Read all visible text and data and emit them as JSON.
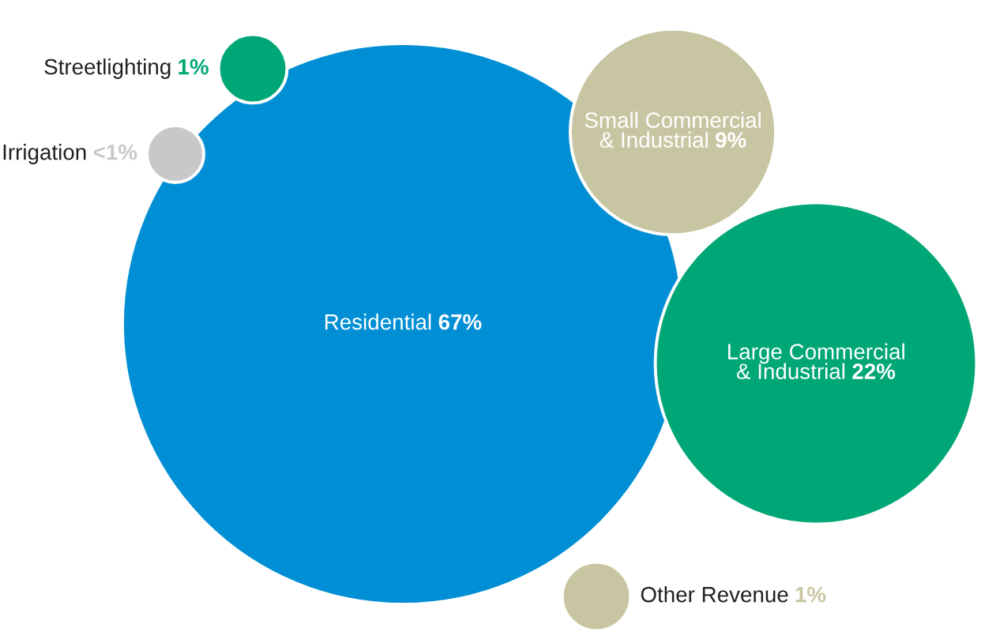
{
  "chart_data": {
    "type": "other",
    "categories": [
      "Residential",
      "Large Commercial\n& Industrial",
      "Small Commercial\n& Industrial",
      "Streetlighting",
      "Irrigation",
      "Other Revenue"
    ],
    "values": [
      67,
      22,
      9,
      1,
      null,
      1
    ],
    "value_labels": [
      "67%",
      "22%",
      "9%",
      "1%",
      "<1%",
      "1%"
    ],
    "colors": [
      "#008fd5",
      "#00a776",
      "#c8c6a2",
      "#00a776",
      "#c8c8ca",
      "#c8c6a2"
    ]
  }
}
